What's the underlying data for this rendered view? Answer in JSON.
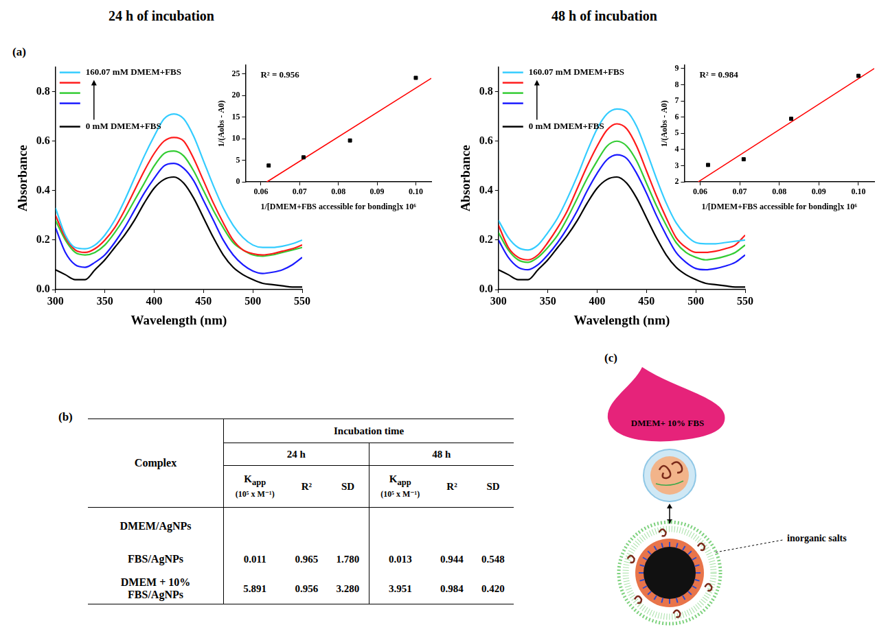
{
  "headings": [
    "24 h of incubation",
    "48 h of incubation"
  ],
  "panel_labels": [
    "(a)",
    "(b)",
    "(c)"
  ],
  "chart_data": [
    {
      "type": "line",
      "x_label": "Wavelength (nm)",
      "y_label": "Absorbance",
      "x": [
        300,
        310,
        320,
        330,
        340,
        350,
        360,
        370,
        380,
        390,
        400,
        410,
        420,
        430,
        440,
        450,
        460,
        470,
        480,
        490,
        500,
        510,
        520,
        530,
        540,
        550
      ],
      "series": [
        {
          "name": "160.07 mM DMEM+FBS",
          "color": "#33ccff",
          "values": [
            0.33,
            0.22,
            0.17,
            0.165,
            0.18,
            0.22,
            0.28,
            0.36,
            0.45,
            0.54,
            0.62,
            0.69,
            0.71,
            0.69,
            0.62,
            0.52,
            0.42,
            0.33,
            0.26,
            0.21,
            0.18,
            0.17,
            0.17,
            0.175,
            0.185,
            0.2
          ]
        },
        {
          "color": "#ff1a1a",
          "values": [
            0.3,
            0.21,
            0.16,
            0.15,
            0.165,
            0.2,
            0.25,
            0.32,
            0.4,
            0.48,
            0.55,
            0.6,
            0.615,
            0.6,
            0.53,
            0.44,
            0.35,
            0.27,
            0.2,
            0.16,
            0.145,
            0.14,
            0.145,
            0.155,
            0.165,
            0.18
          ]
        },
        {
          "color": "#33cc33",
          "values": [
            0.28,
            0.2,
            0.15,
            0.14,
            0.15,
            0.18,
            0.23,
            0.29,
            0.36,
            0.43,
            0.5,
            0.55,
            0.56,
            0.54,
            0.48,
            0.4,
            0.32,
            0.25,
            0.19,
            0.16,
            0.14,
            0.135,
            0.14,
            0.15,
            0.16,
            0.17
          ]
        },
        {
          "color": "#1a1aff",
          "values": [
            0.25,
            0.15,
            0.1,
            0.09,
            0.11,
            0.14,
            0.19,
            0.25,
            0.32,
            0.39,
            0.45,
            0.5,
            0.51,
            0.49,
            0.44,
            0.36,
            0.28,
            0.2,
            0.14,
            0.1,
            0.075,
            0.065,
            0.07,
            0.08,
            0.1,
            0.13
          ]
        },
        {
          "name": "0 mM DMEM+FBS",
          "color": "#000000",
          "values": [
            0.08,
            0.06,
            0.04,
            0.04,
            0.08,
            0.12,
            0.17,
            0.22,
            0.28,
            0.35,
            0.41,
            0.445,
            0.455,
            0.43,
            0.37,
            0.29,
            0.21,
            0.14,
            0.09,
            0.06,
            0.04,
            0.025,
            0.02,
            0.015,
            0.01,
            0.01
          ]
        }
      ],
      "xlim": [
        300,
        550
      ],
      "xticks": [
        300,
        350,
        400,
        450,
        500,
        550
      ],
      "ylim": [
        0,
        0.9
      ],
      "yticks": [
        {
          "value": 0,
          "label": "0.0"
        },
        0.2,
        0.4,
        0.6,
        0.8
      ],
      "grid": false,
      "legend": "upper left"
    },
    {
      "type": "scatter",
      "x_label": "1/[DMEM+FBS accessible for bonding]x 10⁶",
      "y_label": "1/(Aobs - A0)",
      "annotations": [
        "R² = 0.956"
      ],
      "series": [
        {
          "type": "scatter",
          "marker": "square",
          "color": "#000000",
          "x": [
            0.062,
            0.071,
            0.083,
            0.1
          ],
          "values": [
            3.8,
            5.7,
            9.6,
            24.1
          ]
        },
        {
          "type": "line",
          "line_style": "solid",
          "color": "#ff0000",
          "x": [
            0.0615,
            0.104
          ],
          "values": [
            0,
            24
          ]
        }
      ],
      "xlim": [
        0.056,
        0.104
      ],
      "xticks": [
        0.06,
        0.07,
        0.08,
        0.09,
        {
          "value": 0.1,
          "label": "0.10"
        }
      ],
      "ylim": [
        0,
        27
      ],
      "yticks": [
        0,
        5,
        10,
        15,
        20,
        25
      ],
      "grid": false
    },
    {
      "type": "line",
      "x_label": "Wavelength (nm)",
      "y_label": "Absorbance",
      "x": [
        300,
        310,
        320,
        330,
        340,
        350,
        360,
        370,
        380,
        390,
        400,
        410,
        420,
        430,
        440,
        450,
        460,
        470,
        480,
        490,
        500,
        510,
        520,
        530,
        540,
        550
      ],
      "series": [
        {
          "name": "160.07 mM DMEM+FBS",
          "color": "#33ccff",
          "values": [
            0.28,
            0.21,
            0.17,
            0.16,
            0.18,
            0.23,
            0.29,
            0.37,
            0.46,
            0.56,
            0.65,
            0.71,
            0.73,
            0.72,
            0.66,
            0.56,
            0.45,
            0.35,
            0.27,
            0.22,
            0.19,
            0.185,
            0.185,
            0.19,
            0.195,
            0.2
          ]
        },
        {
          "color": "#ff1a1a",
          "values": [
            0.26,
            0.17,
            0.13,
            0.12,
            0.14,
            0.19,
            0.25,
            0.32,
            0.41,
            0.5,
            0.58,
            0.645,
            0.67,
            0.65,
            0.58,
            0.48,
            0.38,
            0.29,
            0.21,
            0.17,
            0.15,
            0.15,
            0.155,
            0.165,
            0.18,
            0.22
          ]
        },
        {
          "color": "#33cc33",
          "values": [
            0.23,
            0.16,
            0.12,
            0.11,
            0.13,
            0.17,
            0.22,
            0.29,
            0.37,
            0.45,
            0.52,
            0.58,
            0.6,
            0.58,
            0.52,
            0.43,
            0.34,
            0.26,
            0.19,
            0.15,
            0.13,
            0.12,
            0.125,
            0.135,
            0.15,
            0.18
          ]
        },
        {
          "color": "#1a1aff",
          "values": [
            0.2,
            0.13,
            0.09,
            0.08,
            0.1,
            0.14,
            0.19,
            0.25,
            0.32,
            0.4,
            0.47,
            0.525,
            0.545,
            0.53,
            0.47,
            0.39,
            0.3,
            0.22,
            0.15,
            0.11,
            0.085,
            0.08,
            0.085,
            0.095,
            0.11,
            0.14
          ]
        },
        {
          "name": "0 mM DMEM+FBS",
          "color": "#000000",
          "values": [
            0.08,
            0.06,
            0.04,
            0.04,
            0.08,
            0.12,
            0.17,
            0.22,
            0.28,
            0.35,
            0.41,
            0.445,
            0.455,
            0.43,
            0.37,
            0.29,
            0.21,
            0.14,
            0.09,
            0.06,
            0.04,
            0.025,
            0.02,
            0.015,
            0.01,
            0.01
          ]
        }
      ],
      "xlim": [
        300,
        550
      ],
      "xticks": [
        300,
        350,
        400,
        450,
        500,
        550
      ],
      "ylim": [
        0,
        0.9
      ],
      "yticks": [
        {
          "value": 0,
          "label": "0.0"
        },
        0.2,
        0.4,
        0.6,
        0.8
      ],
      "grid": false,
      "legend": "upper left"
    },
    {
      "type": "scatter",
      "x_label": "1/[DMEM+FBS accessible for bonding]x 10⁶",
      "y_label": "1/(Aobs - A0)",
      "annotations": [
        "R² = 0.984"
      ],
      "series": [
        {
          "type": "scatter",
          "marker": "square",
          "color": "#000000",
          "x": [
            0.062,
            0.071,
            0.083,
            0.1
          ],
          "values": [
            3.05,
            3.4,
            5.9,
            8.55
          ]
        },
        {
          "type": "line",
          "line_style": "solid",
          "color": "#ff0000",
          "x": [
            0.0595,
            0.104
          ],
          "values": [
            2,
            9
          ]
        }
      ],
      "xlim": [
        0.056,
        0.104
      ],
      "xticks": [
        0.06,
        0.07,
        0.08,
        0.09,
        {
          "value": 0.1,
          "label": "0.10"
        }
      ],
      "ylim": [
        2,
        9.2
      ],
      "yticks": [
        2,
        3,
        4,
        5,
        6,
        7,
        8,
        9
      ],
      "grid": false
    }
  ],
  "table": {
    "complex_header": "Complex",
    "group_header": "Incubation time",
    "times": [
      "24 h",
      "48 h"
    ],
    "columns": [
      {
        "symbol": "K",
        "subscript": "app",
        "unit": "(10⁵ x M⁻¹)"
      },
      {
        "symbol": "R²"
      },
      {
        "symbol": "SD"
      }
    ],
    "rows": [
      [
        "DMEM/AgNPs",
        null,
        null,
        null,
        null,
        null,
        null
      ],
      [
        "FBS/AgNPs",
        "0.011",
        "0.965",
        "1.780",
        "0.013",
        "0.944",
        "0.548"
      ],
      [
        "DMEM + 10% FBS/AgNPs",
        "5.891",
        "0.956",
        "3.280",
        "3.951",
        "0.984",
        "0.420"
      ]
    ]
  },
  "diagram": {
    "drop_label": "DMEM+ 10% FBS",
    "annotation": "inorganic salts"
  }
}
